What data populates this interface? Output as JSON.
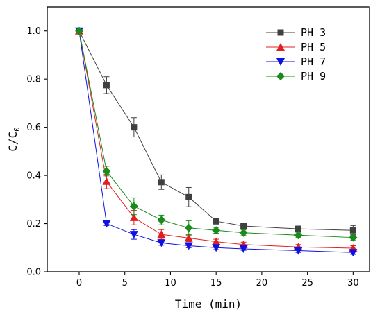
{
  "chart_data": {
    "type": "line",
    "xlabel": "Time (min)",
    "ylabel": "C/C",
    "ylabel_sub": "0",
    "xlim": [
      -3.5,
      31.8
    ],
    "ylim": [
      0,
      1.1
    ],
    "xticks": [
      0,
      5,
      10,
      15,
      20,
      25,
      30
    ],
    "yticks": [
      0.0,
      0.2,
      0.4,
      0.6,
      0.8,
      1.0
    ],
    "xtick_labels": [
      "0",
      "5",
      "10",
      "15",
      "20",
      "25",
      "30"
    ],
    "ytick_labels": [
      "0.0",
      "0.2",
      "0.4",
      "0.6",
      "0.8",
      "1.0"
    ],
    "legend_position": "top-right",
    "grid": false,
    "series": [
      {
        "name": "PH 3",
        "color": "#404040",
        "marker": "square",
        "x": [
          0,
          3,
          6,
          9,
          12,
          15,
          18,
          24,
          30
        ],
        "y": [
          1.0,
          0.775,
          0.6,
          0.372,
          0.31,
          0.21,
          0.19,
          0.178,
          0.172
        ],
        "err": [
          0.0,
          0.035,
          0.04,
          0.03,
          0.04,
          0.012,
          0.01,
          0.012,
          0.02
        ]
      },
      {
        "name": "PH 5",
        "color": "#e02020",
        "marker": "triangle-up",
        "x": [
          0,
          3,
          6,
          9,
          12,
          15,
          18,
          24,
          30
        ],
        "y": [
          1.0,
          0.375,
          0.225,
          0.155,
          0.14,
          0.125,
          0.113,
          0.103,
          0.098
        ],
        "err": [
          0.0,
          0.03,
          0.03,
          0.02,
          0.015,
          0.01,
          0.01,
          0.01,
          0.01
        ]
      },
      {
        "name": "PH 7",
        "color": "#1010e0",
        "marker": "triangle-down",
        "x": [
          0,
          3,
          6,
          9,
          12,
          15,
          18,
          24,
          30
        ],
        "y": [
          1.0,
          0.2,
          0.155,
          0.12,
          0.108,
          0.1,
          0.095,
          0.088,
          0.08
        ],
        "err": [
          0.0,
          0.008,
          0.02,
          0.01,
          0.008,
          0.008,
          0.006,
          0.008,
          0.008
        ]
      },
      {
        "name": "PH 9",
        "color": "#1a8a1a",
        "marker": "diamond",
        "x": [
          0,
          3,
          6,
          9,
          12,
          15,
          18,
          24,
          30
        ],
        "y": [
          1.0,
          0.418,
          0.272,
          0.215,
          0.182,
          0.172,
          0.162,
          0.152,
          0.142
        ],
        "err": [
          0.0,
          0.02,
          0.035,
          0.02,
          0.03,
          0.012,
          0.012,
          0.01,
          0.012
        ]
      }
    ]
  }
}
